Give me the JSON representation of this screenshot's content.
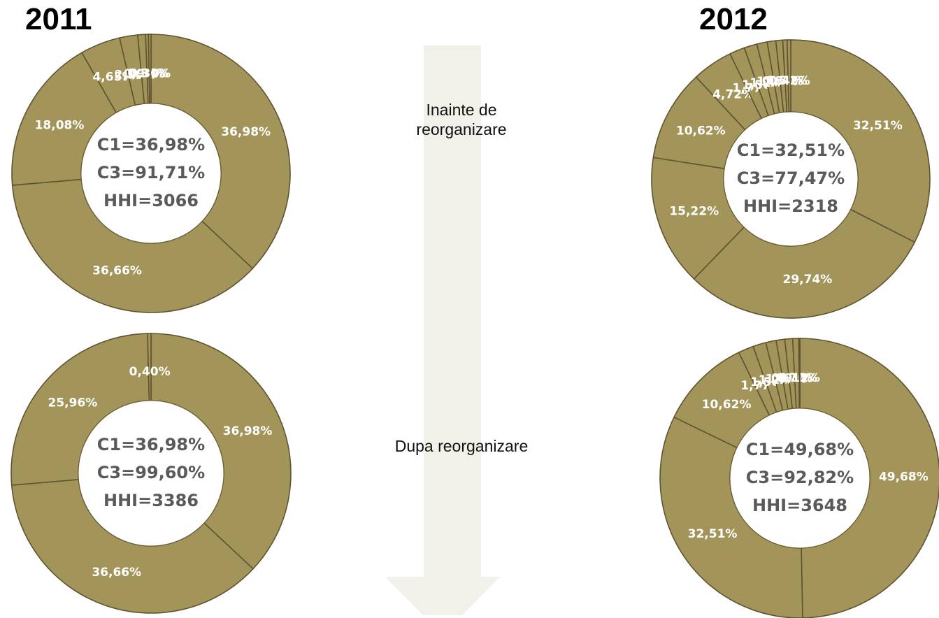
{
  "labels": {
    "year_left": "2011",
    "year_right": "2012",
    "before": "Inainte de reorganizare",
    "after": "Dupa reorganizare"
  },
  "colors": {
    "segment": "#a3955a",
    "segment_border": "#5e5431",
    "arrow": "#f1f1e9",
    "label": "#ffffff",
    "center_text": "#5a5a5a"
  },
  "chart_data": [
    {
      "type": "pie",
      "donut": true,
      "period": "2011",
      "stage": "Inainte de reorganizare",
      "values": [
        36.98,
        36.66,
        18.08,
        4.65,
        2.1,
        0.9,
        0.33,
        0.3
      ],
      "labels": [
        "36,98%",
        "36,66%",
        "18,08%",
        "4,65%",
        "2,10%",
        "0,90%",
        "0,33%",
        "0,30%"
      ],
      "center": [
        "C1=36,98%",
        "C3=91,71%",
        "HHI=3066"
      ]
    },
    {
      "type": "pie",
      "donut": true,
      "period": "2012",
      "stage": "Inainte de reorganizare",
      "values": [
        32.51,
        29.74,
        15.22,
        10.62,
        4.72,
        1.77,
        1.5,
        1.2,
        1.0,
        0.8,
        0.5,
        0.42
      ],
      "labels": [
        "32,51%",
        "29,74%",
        "15,22%",
        "10,62%",
        "4,72%",
        "1,77%",
        "1,50%",
        "1,20%",
        "1,00%",
        "0,80%",
        "0,50%",
        "0,42%"
      ],
      "center": [
        "C1=32,51%",
        "C3=77,47%",
        "HHI=2318"
      ]
    },
    {
      "type": "pie",
      "donut": true,
      "period": "2011",
      "stage": "Dupa reorganizare",
      "values": [
        36.98,
        36.66,
        25.96,
        0.4
      ],
      "labels": [
        "36,98%",
        "36,66%",
        "25,96%",
        "0,40%"
      ],
      "center": [
        "C1=36,98%",
        "C3=99,60%",
        "HHI=3386"
      ]
    },
    {
      "type": "pie",
      "donut": true,
      "period": "2012",
      "stage": "Dupa reorganizare",
      "values": [
        49.68,
        32.51,
        10.62,
        1.77,
        1.5,
        1.2,
        1.0,
        0.9,
        0.7,
        0.12
      ],
      "labels": [
        "49,68%",
        "32,51%",
        "10,62%",
        "1,77%",
        "1,50%",
        "1,20%",
        "1,00%",
        "0,90%",
        "0,70%",
        "0,12%"
      ],
      "center": [
        "C1=49,68%",
        "C3=92,82%",
        "HHI=3648"
      ]
    }
  ]
}
